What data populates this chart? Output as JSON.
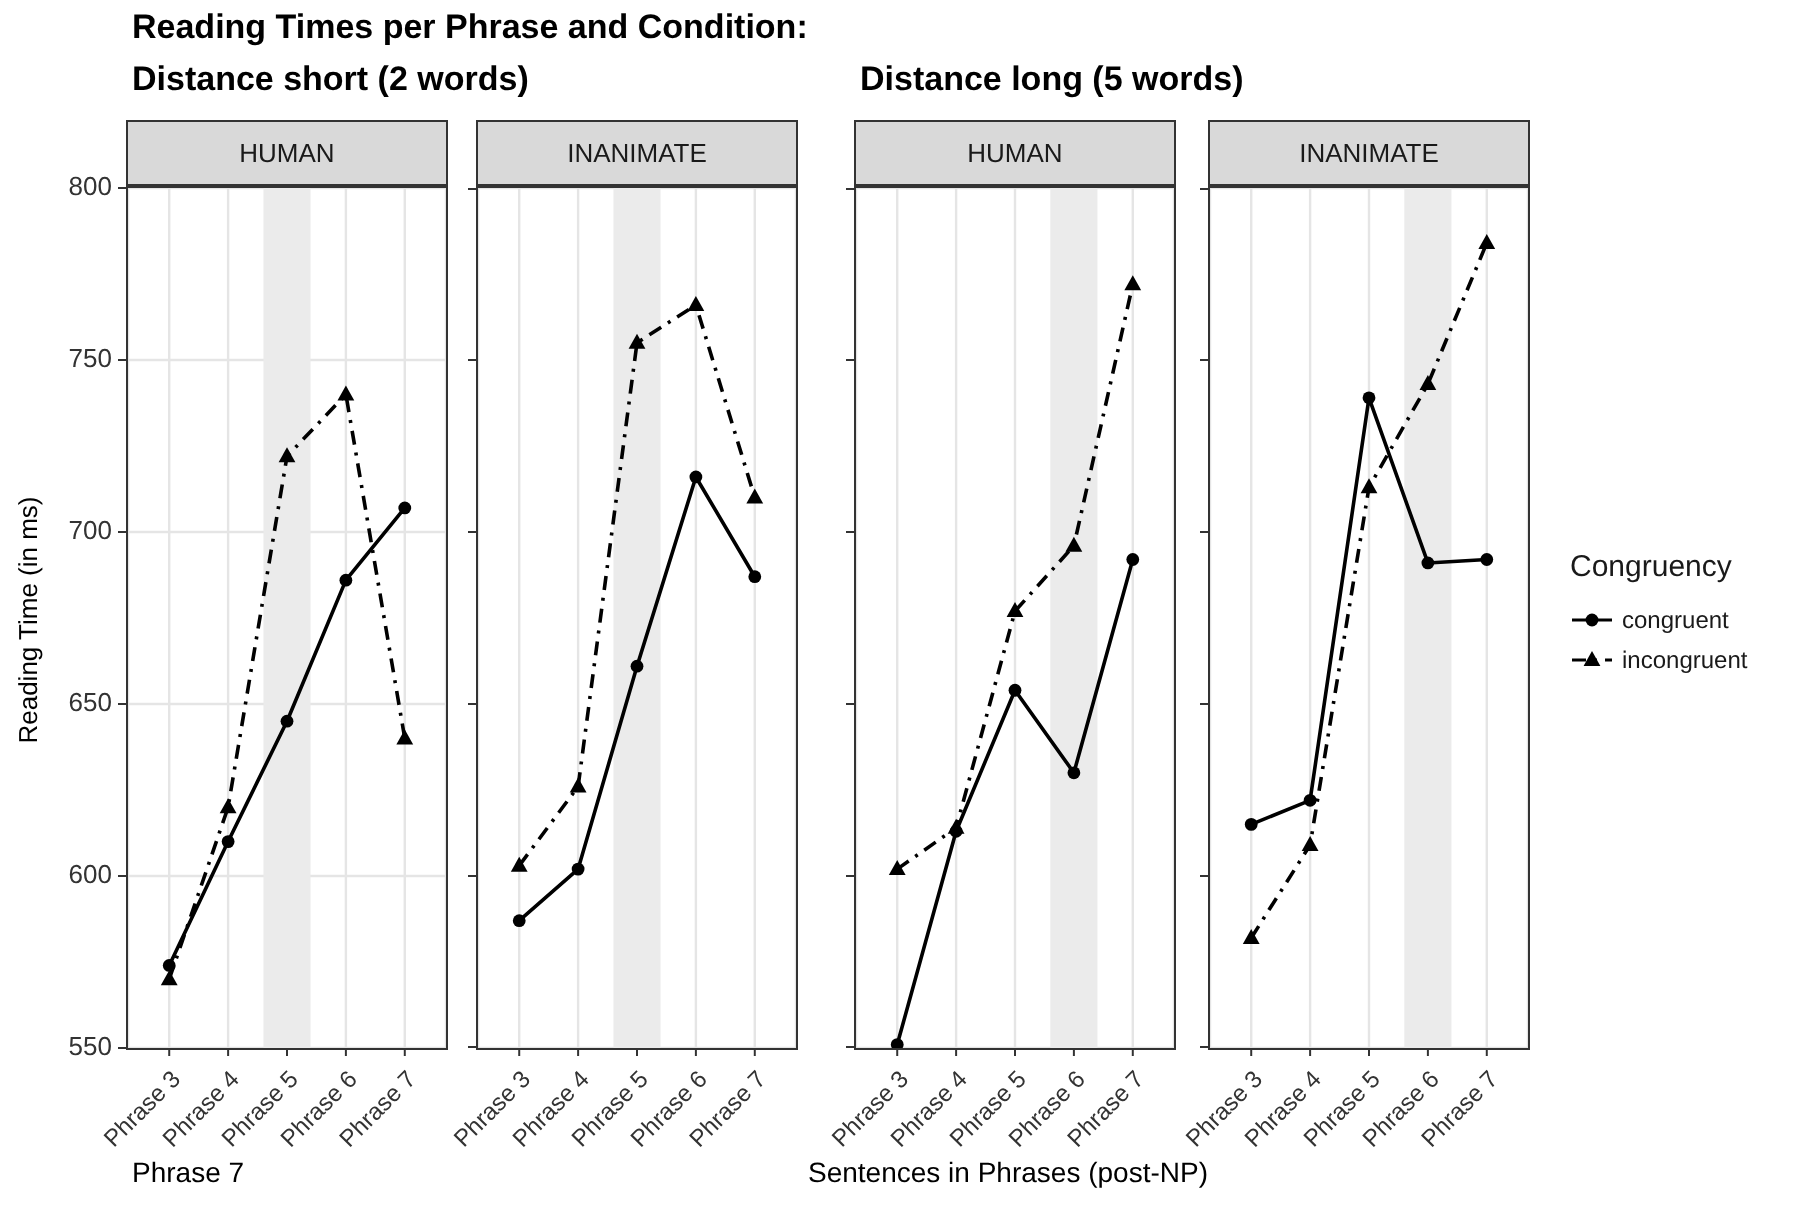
{
  "chart_data": [
    {
      "type": "line",
      "title": "HUMAN",
      "subtitle": "Distance short (2 words)",
      "annotations": [
        "Reading Times per Phrase and Condition:",
        "Phrase 7"
      ],
      "ylabel": "Reading Time (in ms)",
      "categories": [
        "Phrase 3",
        "Phrase 4",
        "Phrase 5",
        "Phrase 6",
        "Phrase 7"
      ],
      "ylim": [
        550,
        800
      ],
      "yticks": [
        550,
        600,
        650,
        700,
        750,
        800
      ],
      "grid": true,
      "legend": false,
      "bands": [
        {
          "axis": "x",
          "from": "Phrase 5",
          "to": "Phrase 5",
          "color": "#ebebeb"
        }
      ],
      "series": [
        {
          "color": "#000000",
          "marker": "circle",
          "line_style": "solid",
          "values": [
            574,
            610,
            645,
            686,
            707
          ]
        },
        {
          "color": "#000000",
          "marker": "triangle",
          "line_style": "dashed",
          "values": [
            570,
            620,
            722,
            740,
            640
          ]
        }
      ]
    },
    {
      "type": "line",
      "title": "INANIMATE",
      "categories": [
        "Phrase 3",
        "Phrase 4",
        "Phrase 5",
        "Phrase 6",
        "Phrase 7"
      ],
      "ylim": [
        550,
        800
      ],
      "yticks": [
        550,
        600,
        650,
        700,
        750,
        800
      ],
      "tick_labels": "x",
      "grid": true,
      "legend": false,
      "bands": [
        {
          "axis": "x",
          "from": "Phrase 5",
          "to": "Phrase 5",
          "color": "#ebebeb"
        }
      ],
      "series": [
        {
          "color": "#000000",
          "marker": "circle",
          "line_style": "solid",
          "values": [
            587,
            602,
            661,
            716,
            687
          ]
        },
        {
          "color": "#000000",
          "marker": "triangle",
          "line_style": "dashed",
          "values": [
            603,
            626,
            755,
            766,
            710
          ]
        }
      ]
    },
    {
      "type": "line",
      "title": "HUMAN",
      "subtitle": "Distance long (5 words)",
      "xlabel": "Sentences in Phrases (post-NP)",
      "categories": [
        "Phrase 3",
        "Phrase 4",
        "Phrase 5",
        "Phrase 6",
        "Phrase 7"
      ],
      "ylim": [
        550,
        800
      ],
      "yticks": [
        550,
        600,
        650,
        700,
        750,
        800
      ],
      "tick_labels": "x",
      "grid": true,
      "legend": false,
      "bands": [
        {
          "axis": "x",
          "from": "Phrase 6",
          "to": "Phrase 6",
          "color": "#ebebeb"
        }
      ],
      "series": [
        {
          "color": "#000000",
          "marker": "circle",
          "line_style": "solid",
          "values": [
            551,
            613,
            654,
            630,
            692
          ]
        },
        {
          "color": "#000000",
          "marker": "triangle",
          "line_style": "dashed",
          "values": [
            602,
            614,
            677,
            696,
            772
          ]
        }
      ]
    },
    {
      "type": "line",
      "title": "INANIMATE",
      "legend_title": "Congruency",
      "categories": [
        "Phrase 3",
        "Phrase 4",
        "Phrase 5",
        "Phrase 6",
        "Phrase 7"
      ],
      "ylim": [
        550,
        800
      ],
      "yticks": [
        550,
        600,
        650,
        700,
        750,
        800
      ],
      "tick_labels": "x",
      "grid": true,
      "legend": "right",
      "bands": [
        {
          "axis": "x",
          "from": "Phrase 6",
          "to": "Phrase 6",
          "color": "#ebebeb"
        }
      ],
      "series": [
        {
          "name": "congruent",
          "color": "#000000",
          "marker": "circle",
          "line_style": "solid",
          "values": [
            615,
            622,
            739,
            691,
            692
          ]
        },
        {
          "name": "incongruent",
          "color": "#000000",
          "marker": "triangle",
          "line_style": "dashed",
          "values": [
            582,
            609,
            713,
            743,
            784
          ]
        }
      ]
    }
  ]
}
